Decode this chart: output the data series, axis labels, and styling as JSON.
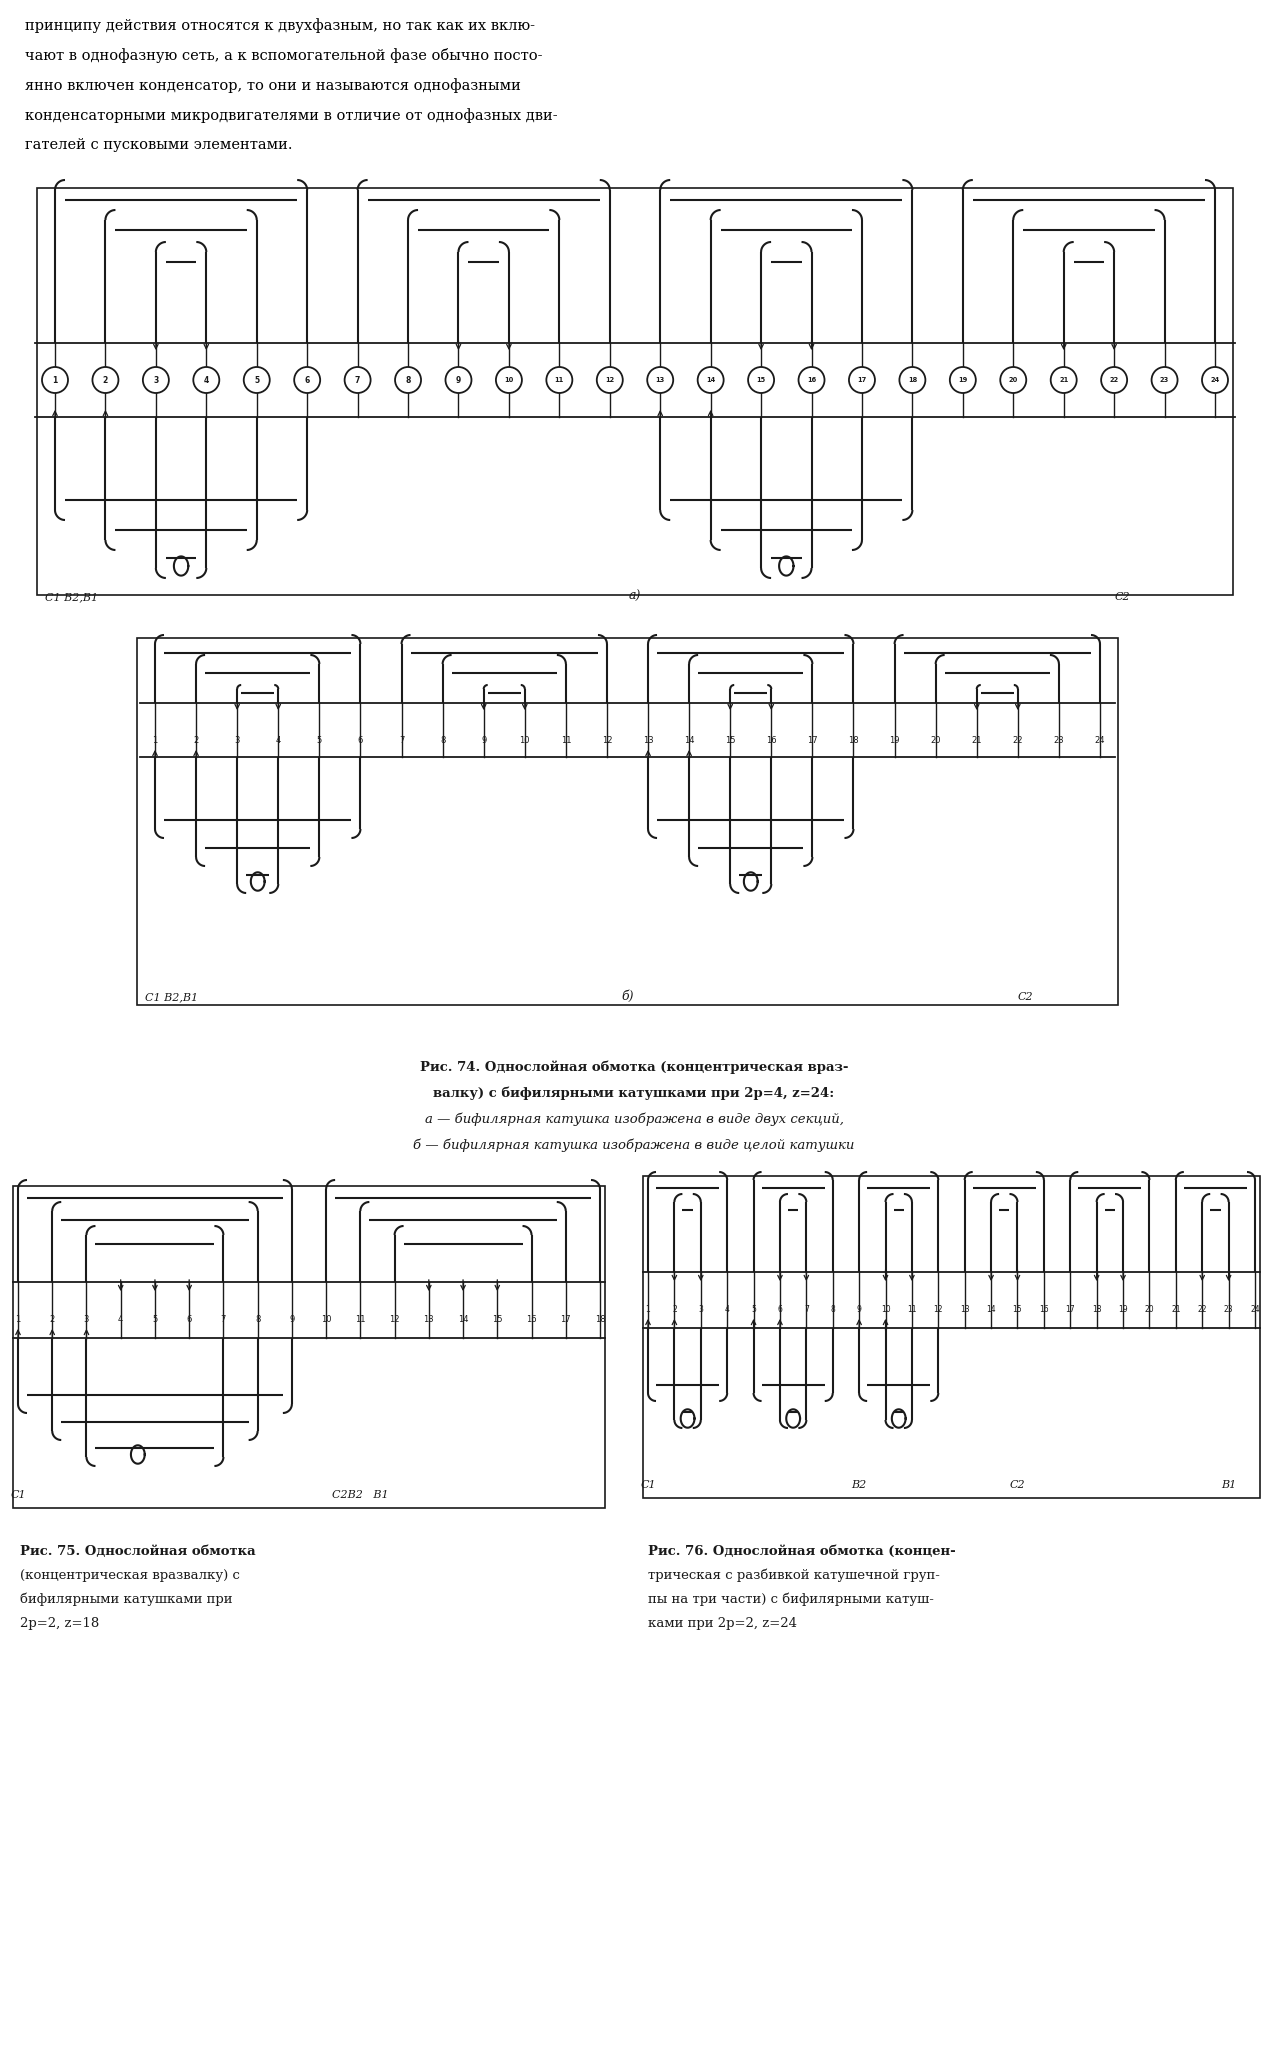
{
  "background_color": "#ffffff",
  "page_width": 12.68,
  "page_height": 20.63,
  "intro_text": [
    "принципу действия относятся к двухфазным, но так как их вклю-",
    "чают в однофазную сеть, а к вспомогательной фазе обычно посто-",
    "янно включен конденсатор, то они и называются однофазными",
    "конденсаторными микродвигателями в отличие от однофазных дви-",
    "гателей с пусковыми элементами."
  ],
  "fig74_caption_line1": "Рис. 74. Однослойная обмотка (концентрическая враз-",
  "fig74_caption_line2": "валку) с бифилярными катушками при 2р=4, z=24:",
  "fig74_caption_line3": "а — бифилярная катушка изображена в виде двух секций,",
  "fig74_caption_line4": "б — бифилярная катушка изображена в виде целой катушки",
  "fig75_caption": [
    "Рис. 75. Однослойная обмотка",
    "(концентрическая вразвалку) с",
    "бифилярными катушками при",
    "2р=2, z=18"
  ],
  "fig76_caption": [
    "Рис. 76. Однослойная обмотка (концен-",
    "трическая с разбивкой катушечной груп-",
    "пы на три части) с бифилярными катуш-",
    "ками при 2р=2, z=24"
  ],
  "label_a": "а)",
  "label_b": "б)",
  "label_C1B2B1_a": "С1 В2,В1",
  "label_C2_a": "С2",
  "label_C1B2B1_b": "С1 В2,В1",
  "label_C2_b": "С2",
  "label_b_diag": "б)",
  "label_C1_75": "С1",
  "label_C2B2B1_75": "С2В2   В1",
  "label_B1_76": "В1",
  "label_B2_76": "В2",
  "label_C1_76": "С1",
  "label_C2_76": "С2",
  "line_color": "#1a1a1a",
  "text_color": "#000000"
}
